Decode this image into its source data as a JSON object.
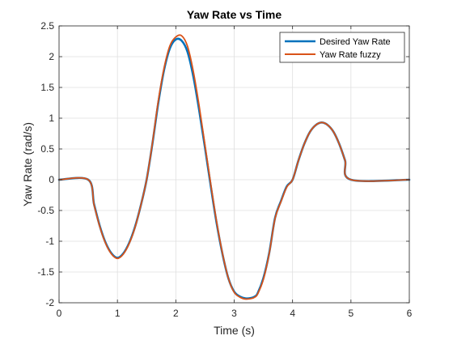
{
  "chart_data": {
    "type": "line",
    "title": "Yaw Rate vs Time",
    "xlabel": "Time (s)",
    "ylabel": "Yaw Rate (rad/s)",
    "xlim": [
      0,
      6
    ],
    "ylim": [
      -2,
      2.5
    ],
    "xticks": [
      0,
      1,
      2,
      3,
      4,
      5,
      6
    ],
    "yticks": [
      -2,
      -1.5,
      -1,
      -0.5,
      0,
      0.5,
      1,
      1.5,
      2,
      2.5
    ],
    "xtick_labels": [
      "0",
      "1",
      "2",
      "3",
      "4",
      "5",
      "6"
    ],
    "ytick_labels": [
      "-2",
      "-1.5",
      "-1",
      "-0.5",
      "0",
      "0.5",
      "1",
      "1.5",
      "2",
      "2.5"
    ],
    "grid": true,
    "legend_position": "top-right",
    "series": [
      {
        "name": "Desired Yaw Rate",
        "color": "#0072BD",
        "x": [
          0,
          0.5,
          0.6,
          0.7,
          0.8,
          0.9,
          1.0,
          1.1,
          1.2,
          1.3,
          1.4,
          1.5,
          1.6,
          1.7,
          1.8,
          1.9,
          2.0,
          2.1,
          2.2,
          2.3,
          2.4,
          2.5,
          2.6,
          2.7,
          2.8,
          2.9,
          3.0,
          3.1,
          3.2,
          3.3,
          3.35,
          3.4,
          3.5,
          3.6,
          3.7,
          3.8,
          3.9,
          4.0,
          4.1,
          4.2,
          4.3,
          4.4,
          4.5,
          4.6,
          4.7,
          4.8,
          4.9,
          5.0,
          6.0
        ],
        "y": [
          0,
          0,
          -0.4,
          -0.76,
          -1.03,
          -1.2,
          -1.27,
          -1.2,
          -1.03,
          -0.77,
          -0.42,
          0,
          0.59,
          1.25,
          1.79,
          2.14,
          2.28,
          2.26,
          2.08,
          1.68,
          1.13,
          0.52,
          -0.11,
          -0.71,
          -1.21,
          -1.6,
          -1.82,
          -1.9,
          -1.93,
          -1.92,
          -1.9,
          -1.85,
          -1.6,
          -1.19,
          -0.62,
          -0.35,
          -0.11,
          0,
          0.31,
          0.58,
          0.78,
          0.89,
          0.93,
          0.89,
          0.78,
          0.58,
          0.31,
          0,
          0
        ]
      },
      {
        "name": "Yaw Rate fuzzy",
        "color": "#D95319",
        "x": [
          0,
          0.5,
          0.6,
          0.7,
          0.8,
          0.9,
          1.0,
          1.1,
          1.2,
          1.3,
          1.4,
          1.5,
          1.6,
          1.7,
          1.8,
          1.9,
          2.0,
          2.1,
          2.2,
          2.3,
          2.4,
          2.5,
          2.6,
          2.7,
          2.8,
          2.9,
          3.0,
          3.1,
          3.2,
          3.3,
          3.35,
          3.4,
          3.5,
          3.6,
          3.7,
          3.8,
          3.9,
          4.0,
          4.1,
          4.2,
          4.3,
          4.4,
          4.5,
          4.6,
          4.7,
          4.8,
          4.9,
          5.0,
          6.0
        ],
        "y": [
          0,
          0,
          -0.41,
          -0.77,
          -1.04,
          -1.21,
          -1.28,
          -1.21,
          -1.04,
          -0.78,
          -0.42,
          0,
          0.6,
          1.28,
          1.82,
          2.18,
          2.32,
          2.34,
          2.17,
          1.76,
          1.2,
          0.56,
          -0.08,
          -0.69,
          -1.2,
          -1.6,
          -1.83,
          -1.91,
          -1.94,
          -1.93,
          -1.91,
          -1.86,
          -1.62,
          -1.2,
          -0.63,
          -0.36,
          -0.12,
          0,
          0.31,
          0.58,
          0.78,
          0.89,
          0.93,
          0.89,
          0.78,
          0.58,
          0.31,
          0,
          0
        ]
      }
    ]
  }
}
